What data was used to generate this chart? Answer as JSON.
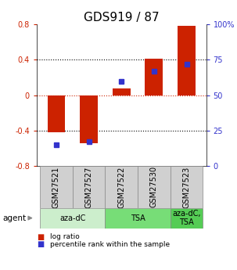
{
  "title": "GDS919 / 87",
  "categories": [
    "GSM27521",
    "GSM27527",
    "GSM27522",
    "GSM27530",
    "GSM27523"
  ],
  "log_ratios": [
    -0.42,
    -0.54,
    0.08,
    0.41,
    0.78
  ],
  "percentile_ranks": [
    15,
    17,
    60,
    67,
    72
  ],
  "ylim_left": [
    -0.8,
    0.8
  ],
  "ylim_right": [
    0,
    100
  ],
  "yticks_left": [
    -0.8,
    -0.4,
    0.0,
    0.4,
    0.8
  ],
  "yticks_right": [
    0,
    25,
    50,
    75,
    100
  ],
  "ytick_labels_right": [
    "0",
    "25",
    "50",
    "75",
    "100%"
  ],
  "dotted_lines": [
    -0.4,
    0.0,
    0.4
  ],
  "bar_color": "#cc2200",
  "dot_color": "#3333cc",
  "agent_groups": [
    {
      "label": "aza-dC",
      "indices": [
        0,
        1
      ],
      "color": "#cceecc"
    },
    {
      "label": "TSA",
      "indices": [
        2,
        3
      ],
      "color": "#77dd77"
    },
    {
      "label": "aza-dC,\nTSA",
      "indices": [
        4
      ],
      "color": "#55cc55"
    }
  ],
  "legend_items": [
    {
      "color": "#cc2200",
      "label": "log ratio"
    },
    {
      "color": "#3333cc",
      "label": "percentile rank within the sample"
    }
  ],
  "agent_label": "agent",
  "background_color": "#ffffff",
  "bar_width": 0.55,
  "title_fontsize": 11,
  "tick_fontsize": 7,
  "sample_label_fontsize": 7,
  "agent_fontsize": 8
}
